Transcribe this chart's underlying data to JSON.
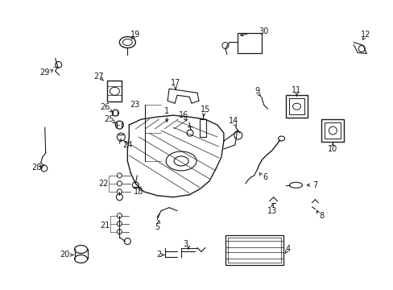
{
  "background_color": "#ffffff",
  "line_color": "#1a1a1a",
  "text_color": "#1a1a1a",
  "figsize": [
    4.89,
    3.6
  ],
  "dpi": 100
}
